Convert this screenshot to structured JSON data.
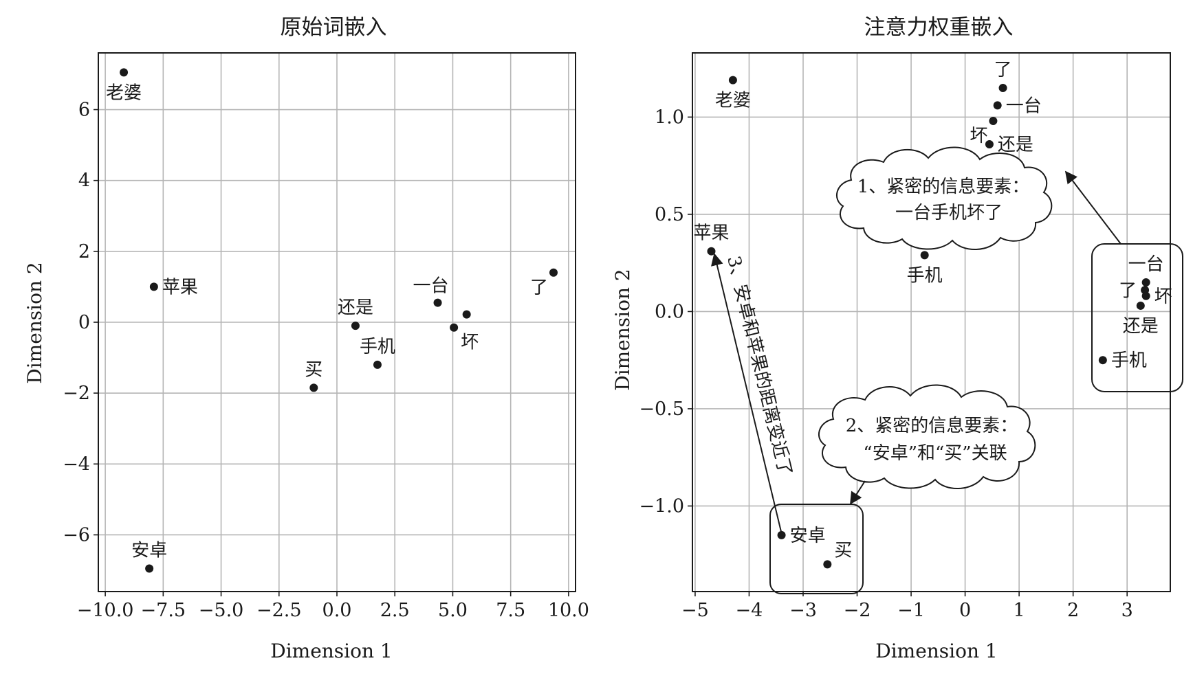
{
  "chart_data": [
    {
      "type": "scatter",
      "title": "原始词嵌入",
      "xlabel": "Dimension 1",
      "ylabel": "Dimension 2",
      "xlim": [
        -10.3,
        10.3
      ],
      "ylim": [
        -7.6,
        7.6
      ],
      "xticks": [
        {
          "v": -10,
          "t": "−10.0"
        },
        {
          "v": -7.5,
          "t": "−7.5"
        },
        {
          "v": -5,
          "t": "−5.0"
        },
        {
          "v": -2.5,
          "t": "−2.5"
        },
        {
          "v": 0,
          "t": "0.0"
        },
        {
          "v": 2.5,
          "t": "2.5"
        },
        {
          "v": 5,
          "t": "5.0"
        },
        {
          "v": 7.5,
          "t": "7.5"
        },
        {
          "v": 10,
          "t": "10.0"
        }
      ],
      "yticks": [
        {
          "v": -6,
          "t": "−6"
        },
        {
          "v": -4,
          "t": "−4"
        },
        {
          "v": -2,
          "t": "−2"
        },
        {
          "v": 0,
          "t": "0"
        },
        {
          "v": 2,
          "t": "2"
        },
        {
          "v": 4,
          "t": "4"
        },
        {
          "v": 6,
          "t": "6"
        }
      ],
      "grid": true,
      "points": [
        {
          "label": "老婆",
          "x": -9.2,
          "y": 7.05,
          "pos": "below"
        },
        {
          "label": "苹果",
          "x": -7.9,
          "y": 1.0,
          "pos": "right"
        },
        {
          "label": "安卓",
          "x": -8.1,
          "y": -6.95,
          "pos": "above"
        },
        {
          "label": "买",
          "x": -1.0,
          "y": -1.85,
          "pos": "above"
        },
        {
          "label": "还是",
          "x": 0.8,
          "y": -0.1,
          "pos": "above"
        },
        {
          "label": "手机",
          "x": 1.75,
          "y": -1.2,
          "pos": "above"
        },
        {
          "label": "一台",
          "x": 4.35,
          "y": 0.55,
          "pos": "above-left"
        },
        {
          "label": "坏",
          "x": 5.05,
          "y": -0.15,
          "pos": "below-right"
        },
        {
          "label": "",
          "x": 5.6,
          "y": 0.22,
          "pos": "none"
        },
        {
          "label": "了",
          "x": 9.35,
          "y": 1.4,
          "pos": "below-left"
        }
      ]
    },
    {
      "type": "scatter",
      "title": "注意力权重嵌入",
      "xlabel": "Dimension 1",
      "ylabel": "Dimension 2",
      "xlim": [
        -5.05,
        3.8
      ],
      "ylim": [
        -1.44,
        1.33
      ],
      "xticks": [
        {
          "v": -5,
          "t": "−5"
        },
        {
          "v": -4,
          "t": "−4"
        },
        {
          "v": -3,
          "t": "−3"
        },
        {
          "v": -2,
          "t": "−2"
        },
        {
          "v": -1,
          "t": "−1"
        },
        {
          "v": 0,
          "t": "0"
        },
        {
          "v": 1,
          "t": "1"
        },
        {
          "v": 2,
          "t": "2"
        },
        {
          "v": 3,
          "t": "3"
        }
      ],
      "yticks": [
        {
          "v": -1.0,
          "t": "−1.0"
        },
        {
          "v": -0.5,
          "t": "−0.5"
        },
        {
          "v": 0.0,
          "t": "0.0"
        },
        {
          "v": 0.5,
          "t": "0.5"
        },
        {
          "v": 1.0,
          "t": "1.0"
        }
      ],
      "grid": true,
      "points": [
        {
          "label": "老婆",
          "x": -4.3,
          "y": 1.19,
          "pos": "below"
        },
        {
          "label": "了",
          "x": 0.7,
          "y": 1.15,
          "pos": "above"
        },
        {
          "label": "一台",
          "x": 0.6,
          "y": 1.06,
          "pos": "right"
        },
        {
          "label": "坏",
          "x": 0.52,
          "y": 0.98,
          "pos": "below-left"
        },
        {
          "label": "还是",
          "x": 0.45,
          "y": 0.86,
          "pos": "right"
        },
        {
          "label": "苹果",
          "x": -4.7,
          "y": 0.31,
          "pos": "above"
        },
        {
          "label": "手机",
          "x": -0.75,
          "y": 0.29,
          "pos": "below"
        },
        {
          "label": "一台",
          "x": 3.35,
          "y": 0.15,
          "pos": "above"
        },
        {
          "label": "了",
          "x": 3.33,
          "y": 0.11,
          "pos": "left"
        },
        {
          "label": "坏",
          "x": 3.35,
          "y": 0.08,
          "pos": "right"
        },
        {
          "label": "还是",
          "x": 3.25,
          "y": 0.03,
          "pos": "below"
        },
        {
          "label": "手机",
          "x": 2.55,
          "y": -0.25,
          "pos": "right"
        },
        {
          "label": "安卓",
          "x": -3.4,
          "y": -1.15,
          "pos": "right"
        },
        {
          "label": "买",
          "x": -2.55,
          "y": -1.3,
          "pos": "above-right"
        }
      ],
      "annotations": {
        "cloud1": [
          "1、紧密的信息要素：",
          "一台手机坏了"
        ],
        "cloud2": [
          "2、紧密的信息要素：",
          "“安卓”和“买”关联"
        ],
        "arrow3": "3、安卓和苹果的距离变近了"
      }
    }
  ]
}
